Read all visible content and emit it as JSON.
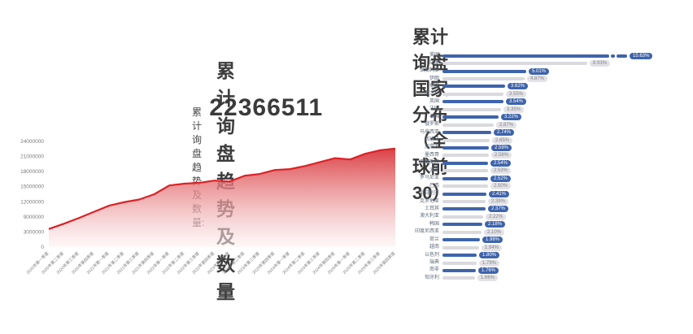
{
  "chart_data": [
    {
      "type": "area",
      "title": "累计询盘趋势及数量",
      "kpi_label": "累计询盘趋势及数量:",
      "kpi_value": "22366511",
      "ylim": [
        0,
        24000000
      ],
      "y_ticks": [
        "24000000",
        "21000000",
        "18000000",
        "15000000",
        "12000000",
        "9000000",
        "3000000",
        "0"
      ],
      "x": [
        "2020年第一季度",
        "2020年第二季度",
        "2020年第三季度",
        "2020年第四季度",
        "2021年第一季度",
        "2021年第二季度",
        "2021年第三季度",
        "2021年第四季度",
        "2022年第一季度",
        "2022年第二季度",
        "2022年第三季度",
        "2022年第四季度",
        "2023年第一季度",
        "2023年第二季度",
        "2023年第三季度",
        "2023年第四季度",
        "2024年第一季度",
        "2024年第二季度",
        "2024年第三季度",
        "2024年第四季度",
        "2025年第一季度",
        "2025年第二季度",
        "2025年第三季度",
        "2025年第四季度"
      ],
      "values": [
        4100000,
        5300000,
        6600000,
        8000000,
        9400000,
        10200000,
        10800000,
        12000000,
        14000000,
        14400000,
        14600000,
        15100000,
        14900000,
        16200000,
        16600000,
        17500000,
        17700000,
        18400000,
        19300000,
        20200000,
        19900000,
        21200000,
        22000000,
        22366511
      ],
      "line_color": "#dd2127",
      "fill_top": "#d8373c",
      "fill_bottom": "#fdf1f1",
      "axis_text_color": "#7a7a7a",
      "grid": false,
      "legend": "none"
    },
    {
      "type": "bar",
      "orientation": "horizontal",
      "title": "累计询盘国家分布（全球前30）",
      "categories": [
        "美国",
        "印度",
        "保加利亚",
        "伊朗",
        "德国",
        "意大利",
        "英国",
        "法国",
        "泰国",
        "俄罗斯",
        "马来西亚",
        "西班牙",
        "加拿大",
        "墨西哥",
        "巴基斯坦",
        "波兰",
        "罗马尼亚",
        "巴西",
        "尼日利亚",
        "克罗地亚",
        "土耳其",
        "澳大利亚",
        "韩国",
        "印度尼西亚",
        "荷兰",
        "越南",
        "以色列",
        "瑞典",
        "南非",
        "匈牙利"
      ],
      "values": [
        15.63,
        8.93,
        5.01,
        4.87,
        3.62,
        3.55,
        3.54,
        3.35,
        3.22,
        2.87,
        2.74,
        2.65,
        2.59,
        2.58,
        2.54,
        2.53,
        2.52,
        2.5,
        2.41,
        2.39,
        2.37,
        2.22,
        2.18,
        2.1,
        1.98,
        1.94,
        1.8,
        1.79,
        1.76,
        1.66
      ],
      "labels": [
        "15.63%",
        "8.93%",
        "5.01%",
        "4.87%",
        "3.62%",
        "3.55%",
        "3.54%",
        "3.35%",
        "3.22%",
        "2.87%",
        "2.74%",
        "2.65%",
        "2.59%",
        "2.58%",
        "2.54%",
        "2.53%",
        "2.52%",
        "2.50%",
        "2.41%",
        "2.39%",
        "2.37%",
        "2.22%",
        "2.18%",
        "2.10%",
        "1.98%",
        "1.94%",
        "1.80%",
        "1.79%",
        "1.76%",
        "1.66%"
      ],
      "broken_bar_index": 0,
      "colors": {
        "bar_primary": "#3e64ab",
        "bar_secondary": "#d9d9de",
        "badge_primary_bg": "#3e64ab",
        "badge_primary_text": "#ffffff",
        "badge_secondary_bg": "#e2e2e6",
        "badge_secondary_text": "#85858a",
        "label_text": "#5f6b7a"
      },
      "legend": "none"
    }
  ]
}
